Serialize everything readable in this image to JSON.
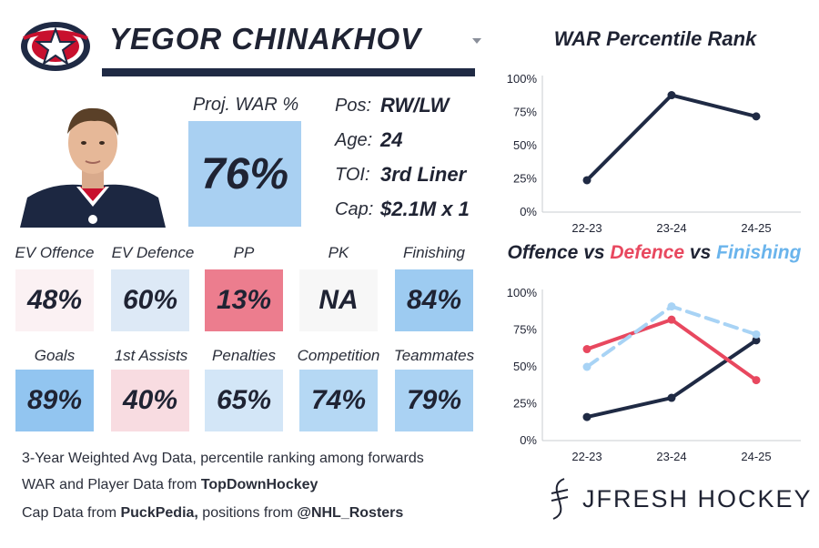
{
  "player": {
    "name": "YEGOR CHINAKHOV",
    "war_label": "Proj. WAR %",
    "war_value": "76%",
    "info": [
      {
        "label": "Pos:",
        "value": "RW/LW"
      },
      {
        "label": "Age:",
        "value": "24"
      },
      {
        "label": "TOI:",
        "value": "3rd Liner"
      },
      {
        "label": "Cap:",
        "value": "$2.1M x 1"
      }
    ]
  },
  "stats_row1": [
    {
      "label": "EV Offence",
      "value": "48%",
      "color": "#fbf1f3"
    },
    {
      "label": "EV Defence",
      "value": "60%",
      "color": "#dde9f6"
    },
    {
      "label": "PP",
      "value": "13%",
      "color": "#ec7d8e"
    },
    {
      "label": "PK",
      "value": "NA",
      "color": "#f7f7f7"
    },
    {
      "label": "Finishing",
      "value": "84%",
      "color": "#9dcbf1"
    }
  ],
  "stats_row2": [
    {
      "label": "Goals",
      "value": "89%",
      "color": "#92c5f0"
    },
    {
      "label": "1st Assists",
      "value": "40%",
      "color": "#f8dce1"
    },
    {
      "label": "Penalties",
      "value": "65%",
      "color": "#d3e6f7"
    },
    {
      "label": "Competition",
      "value": "74%",
      "color": "#b5d8f4"
    },
    {
      "label": "Teammates",
      "value": "79%",
      "color": "#aad2f3"
    }
  ],
  "footer": {
    "line1": "3-Year Weighted Avg Data, percentile ranking among forwards",
    "line2_prefix": "WAR and Player Data from ",
    "line2_bold": "TopDownHockey",
    "line3_prefix": "Cap Data from ",
    "line3_bold1": "PuckPedia,",
    "line3_mid": " positions from ",
    "line3_bold2": "@NHL_Rosters"
  },
  "brand": "JFRESH HOCKEY",
  "chart_data": [
    {
      "type": "line",
      "title": "WAR Percentile Rank",
      "categories": [
        "22-23",
        "23-24",
        "24-25"
      ],
      "series": [
        {
          "values": [
            24,
            88,
            72
          ],
          "color": "#1f2a44"
        }
      ],
      "ylim": [
        0,
        100
      ],
      "yticks": [
        "0%",
        "25%",
        "50%",
        "75%",
        "100%"
      ],
      "grid": false
    },
    {
      "type": "line",
      "title_parts": [
        "Offence",
        " vs ",
        "Defence",
        " vs ",
        "Finishing"
      ],
      "categories": [
        "22-23",
        "23-24",
        "24-25"
      ],
      "series": [
        {
          "values": [
            16,
            29,
            68
          ],
          "color": "#1f2a44",
          "dashed": false
        },
        {
          "values": [
            62,
            82,
            41
          ],
          "color": "#e8485f",
          "dashed": false
        },
        {
          "values": [
            50,
            91,
            72
          ],
          "color": "#a8d3f5",
          "dashed": true
        }
      ],
      "ylim": [
        0,
        100
      ],
      "yticks": [
        "0%",
        "25%",
        "50%",
        "75%",
        "100%"
      ],
      "grid": false
    }
  ]
}
